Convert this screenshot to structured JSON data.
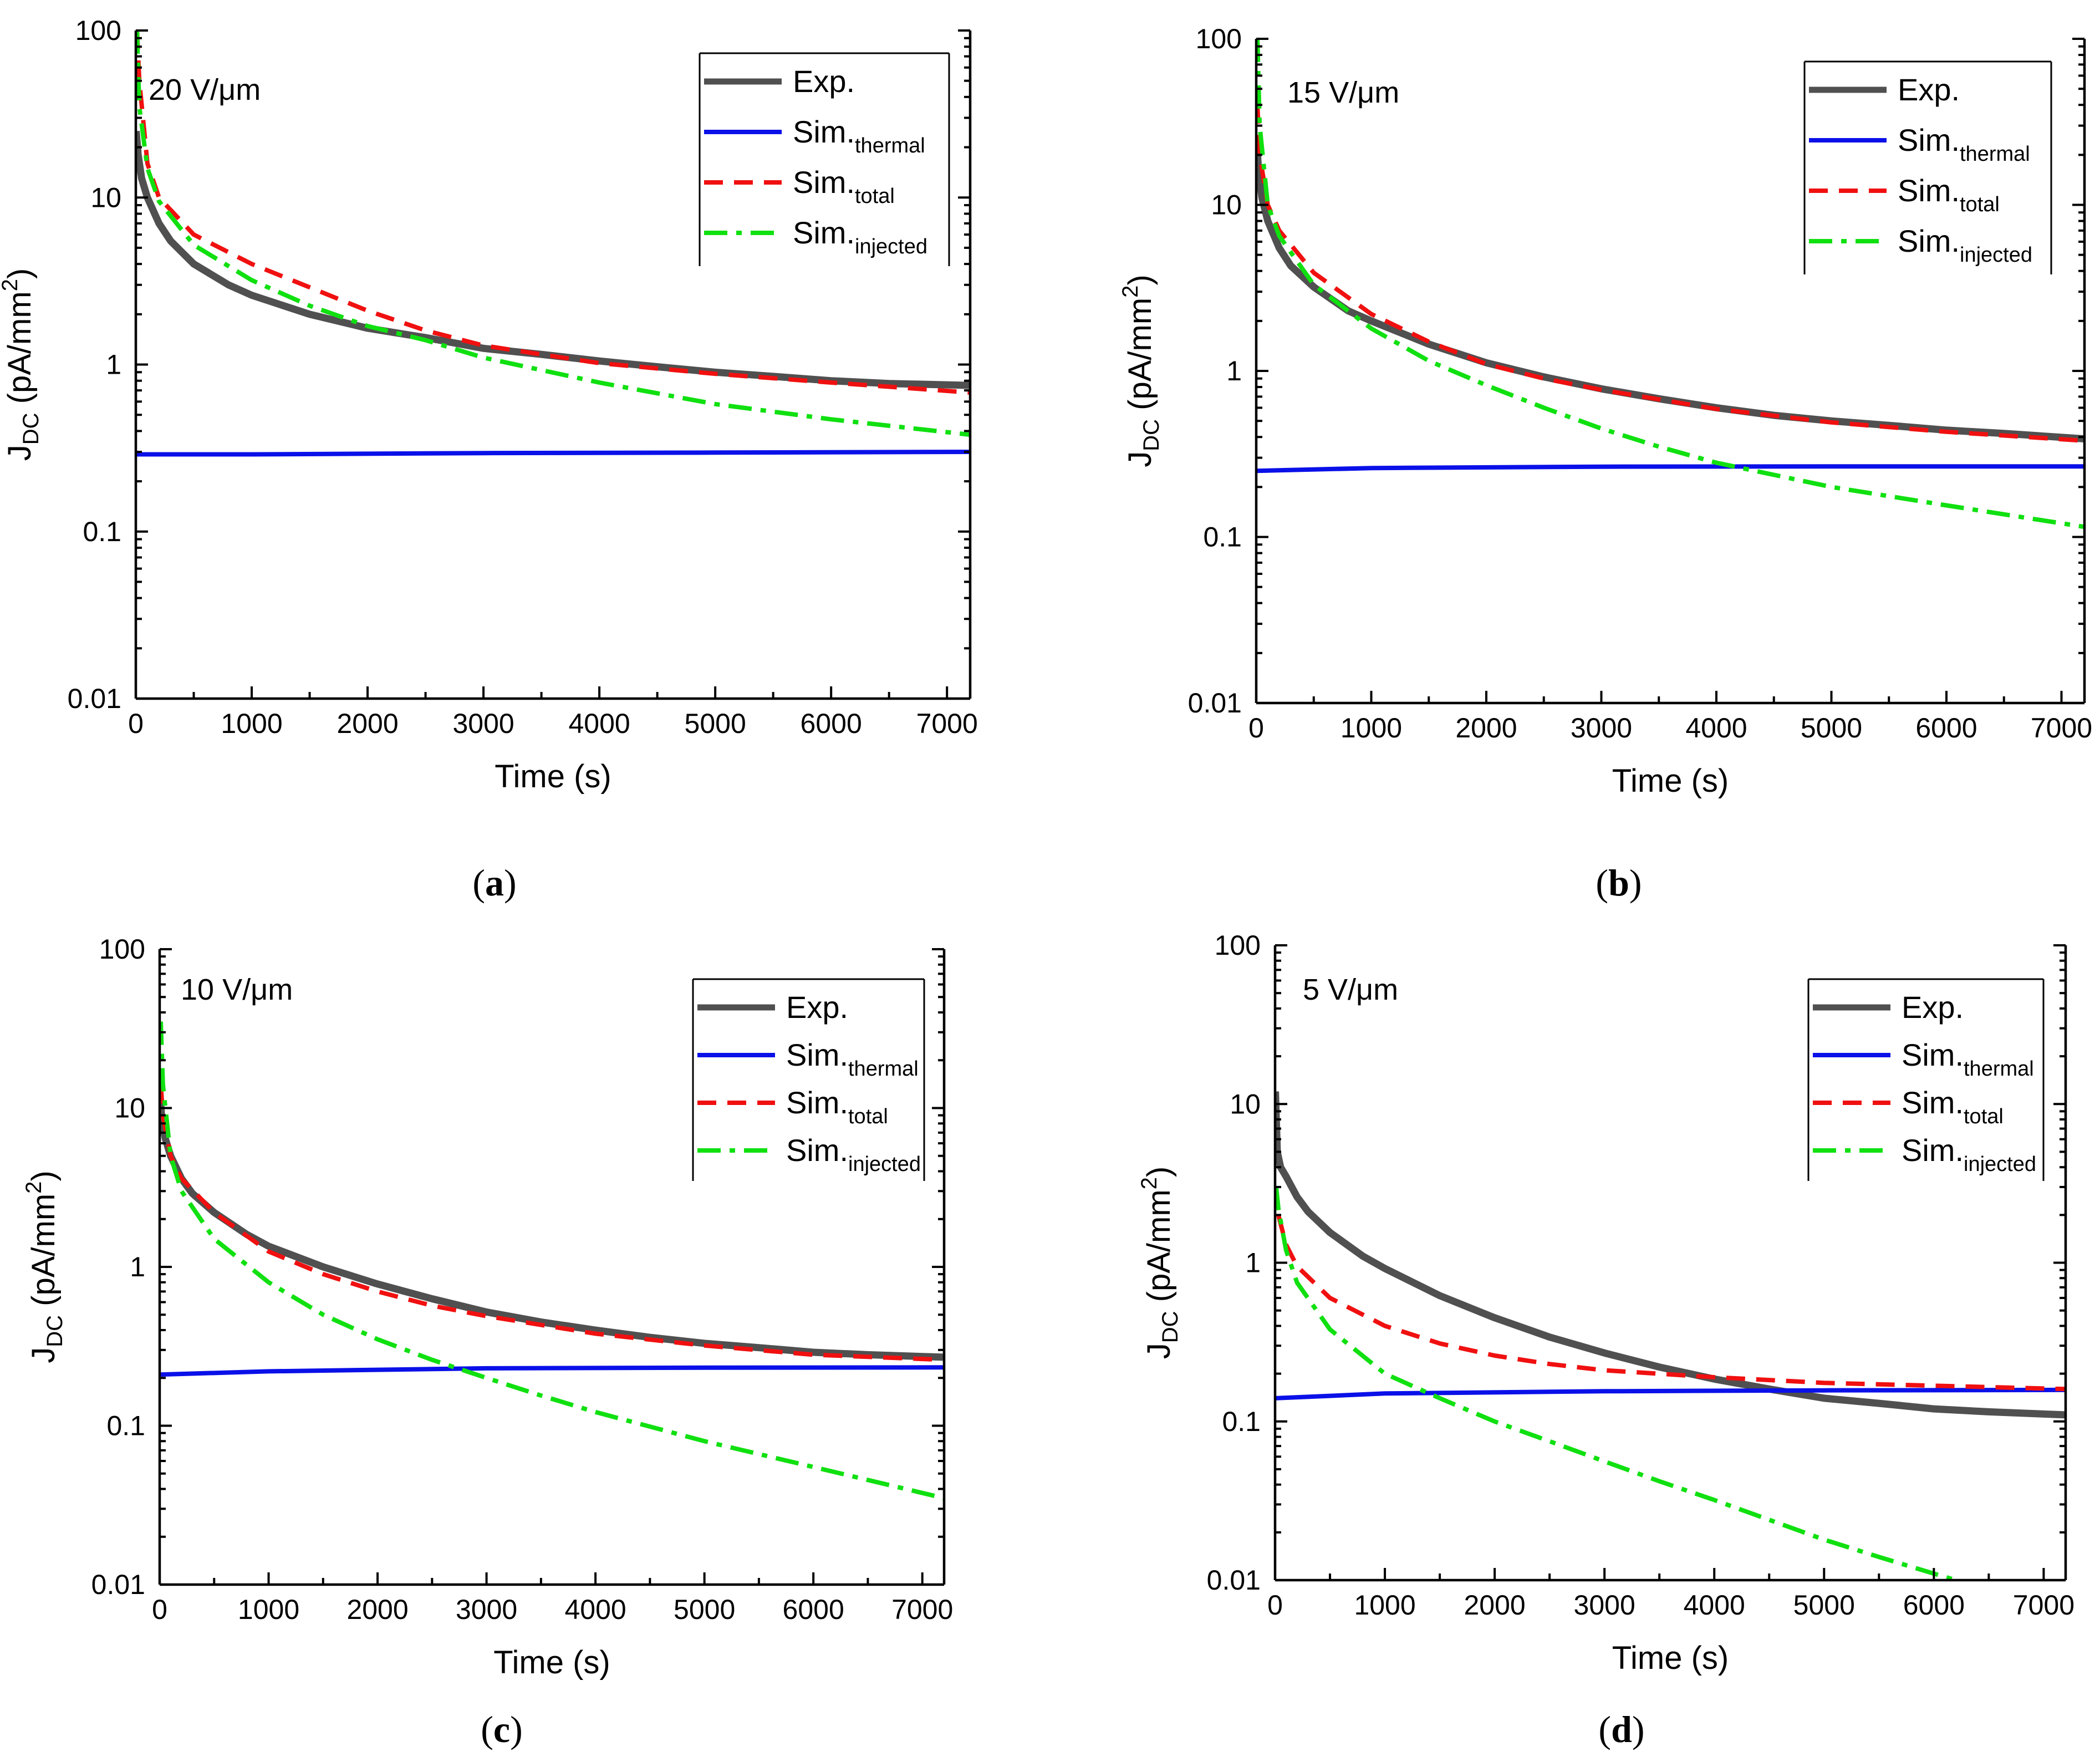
{
  "colors": {
    "exp": "#505050",
    "thermal": "#0a10e8",
    "total": "#f01010",
    "injected": "#10e010"
  },
  "chart_data": [
    {
      "panel": "(a)",
      "panel_letter": "a",
      "type": "line",
      "annotation": "20 V/μm",
      "xlabel": "Time (s)",
      "ylabel": "JDC (pA/mm2)",
      "ylabel_main": "J",
      "ylabel_sub": "DC",
      "ylabel_rest": " (pA/mm",
      "ylabel_sup": "2",
      "ylabel_end": ")",
      "xscale": "linear",
      "yscale": "log",
      "xlim": [
        0,
        7200
      ],
      "ylim": [
        0.01,
        100
      ],
      "xticks": [
        "0",
        "1000",
        "2000",
        "3000",
        "4000",
        "5000",
        "6000",
        "7000"
      ],
      "yticks": [
        "0.01",
        "0.1",
        "1",
        "10",
        "100"
      ],
      "legend": [
        {
          "key": "exp",
          "label": "Exp.",
          "sub": ""
        },
        {
          "key": "thermal",
          "label": "Sim.",
          "sub": "thermal"
        },
        {
          "key": "total",
          "label": "Sim.",
          "sub": "total"
        },
        {
          "key": "injected",
          "label": "Sim.",
          "sub": "injected"
        }
      ],
      "series": [
        {
          "key": "exp",
          "name": "Exp.",
          "x": [
            3,
            20,
            50,
            100,
            200,
            300,
            500,
            800,
            1000,
            1500,
            2000,
            2500,
            3000,
            3500,
            4000,
            4500,
            5000,
            5500,
            6000,
            6500,
            7200
          ],
          "y": [
            25,
            18,
            13,
            10,
            7,
            5.5,
            4,
            3,
            2.6,
            2,
            1.65,
            1.45,
            1.25,
            1.15,
            1.05,
            0.97,
            0.9,
            0.85,
            0.8,
            0.77,
            0.75
          ]
        },
        {
          "key": "thermal",
          "name": "Sim.thermal",
          "x": [
            0,
            1000,
            3000,
            5000,
            7200
          ],
          "y": [
            0.29,
            0.29,
            0.295,
            0.297,
            0.3
          ]
        },
        {
          "key": "total",
          "name": "Sim.total",
          "x": [
            10,
            30,
            100,
            200,
            500,
            1000,
            1500,
            2000,
            2500,
            3000,
            3500,
            4000,
            5000,
            6000,
            7200
          ],
          "y": [
            100,
            50,
            16,
            10,
            6,
            4,
            2.9,
            2.1,
            1.6,
            1.3,
            1.15,
            1.02,
            0.88,
            0.78,
            0.68
          ]
        },
        {
          "key": "injected",
          "name": "Sim.injected",
          "x": [
            10,
            30,
            100,
            200,
            500,
            1000,
            1500,
            2000,
            2500,
            3000,
            4000,
            5000,
            6000,
            7200
          ],
          "y": [
            100,
            35,
            15,
            9.5,
            5.2,
            3.2,
            2.25,
            1.7,
            1.4,
            1.1,
            0.78,
            0.58,
            0.47,
            0.38
          ]
        }
      ]
    },
    {
      "panel": "(b)",
      "panel_letter": "b",
      "type": "line",
      "annotation": "15 V/μm",
      "xlabel": "Time (s)",
      "ylabel": "JDC (pA/mm2)",
      "ylabel_main": "J",
      "ylabel_sub": "DC",
      "ylabel_rest": " (pA/mm",
      "ylabel_sup": "2",
      "ylabel_end": ")",
      "xscale": "linear",
      "yscale": "log",
      "xlim": [
        0,
        7200
      ],
      "ylim": [
        0.01,
        100
      ],
      "xticks": [
        "0",
        "1000",
        "2000",
        "3000",
        "4000",
        "5000",
        "6000",
        "7000"
      ],
      "yticks": [
        "0.01",
        "0.1",
        "1",
        "10",
        "100"
      ],
      "legend": [
        {
          "key": "exp",
          "label": "Exp.",
          "sub": ""
        },
        {
          "key": "thermal",
          "label": "Sim.",
          "sub": "thermal"
        },
        {
          "key": "total",
          "label": "Sim.",
          "sub": "total"
        },
        {
          "key": "injected",
          "label": "Sim.",
          "sub": "injected"
        }
      ],
      "series": [
        {
          "key": "exp",
          "name": "Exp.",
          "x": [
            3,
            20,
            50,
            100,
            200,
            300,
            500,
            800,
            1000,
            1500,
            2000,
            2500,
            3000,
            3500,
            4000,
            4500,
            5000,
            5500,
            6000,
            6500,
            7200
          ],
          "y": [
            25,
            16,
            11,
            8,
            5.5,
            4.3,
            3.2,
            2.3,
            2,
            1.45,
            1.12,
            0.92,
            0.78,
            0.68,
            0.6,
            0.54,
            0.5,
            0.47,
            0.44,
            0.42,
            0.39
          ]
        },
        {
          "key": "thermal",
          "name": "Sim.thermal",
          "x": [
            0,
            1000,
            3000,
            5000,
            7200
          ],
          "y": [
            0.25,
            0.26,
            0.265,
            0.266,
            0.266
          ]
        },
        {
          "key": "total",
          "name": "Sim.total",
          "x": [
            10,
            30,
            100,
            200,
            500,
            1000,
            1500,
            2000,
            2500,
            3000,
            4000,
            5000,
            6000,
            7200
          ],
          "y": [
            40,
            20,
            10,
            7,
            3.9,
            2.2,
            1.5,
            1.1,
            0.9,
            0.77,
            0.59,
            0.49,
            0.43,
            0.38
          ]
        },
        {
          "key": "injected",
          "name": "Sim.injected",
          "x": [
            10,
            30,
            100,
            200,
            500,
            1000,
            1500,
            2000,
            2500,
            3000,
            3500,
            4000,
            5000,
            6000,
            7200
          ],
          "y": [
            100,
            30,
            10,
            6.5,
            3.3,
            1.8,
            1.15,
            0.82,
            0.6,
            0.45,
            0.35,
            0.28,
            0.2,
            0.155,
            0.115
          ]
        }
      ]
    },
    {
      "panel": "(c)",
      "panel_letter": "c",
      "type": "line",
      "annotation": "10 V/μm",
      "xlabel": "Time (s)",
      "ylabel": "JDC (pA/mm2)",
      "ylabel_main": "J",
      "ylabel_sub": "DC",
      "ylabel_rest": " (pA/mm",
      "ylabel_sup": "2",
      "ylabel_end": ")",
      "xscale": "linear",
      "yscale": "log",
      "xlim": [
        0,
        7200
      ],
      "ylim": [
        0.01,
        100
      ],
      "xticks": [
        "0",
        "1000",
        "2000",
        "3000",
        "4000",
        "5000",
        "6000",
        "7000"
      ],
      "yticks": [
        "0.01",
        "0.1",
        "1",
        "10",
        "100"
      ],
      "legend": [
        {
          "key": "exp",
          "label": "Exp.",
          "sub": ""
        },
        {
          "key": "thermal",
          "label": "Sim.",
          "sub": "thermal"
        },
        {
          "key": "total",
          "label": "Sim.",
          "sub": "total"
        },
        {
          "key": "injected",
          "label": "Sim.",
          "sub": "injected"
        }
      ],
      "series": [
        {
          "key": "exp",
          "name": "Exp.",
          "x": [
            3,
            20,
            50,
            100,
            200,
            300,
            500,
            800,
            1000,
            1500,
            2000,
            2500,
            3000,
            3500,
            4000,
            4500,
            5000,
            5500,
            6000,
            6500,
            7200
          ],
          "y": [
            12,
            8.5,
            6.5,
            5,
            3.6,
            2.9,
            2.2,
            1.6,
            1.35,
            1,
            0.78,
            0.63,
            0.52,
            0.45,
            0.4,
            0.36,
            0.33,
            0.31,
            0.29,
            0.28,
            0.27
          ]
        },
        {
          "key": "thermal",
          "name": "Sim.thermal",
          "x": [
            0,
            1000,
            3000,
            5000,
            7200
          ],
          "y": [
            0.21,
            0.22,
            0.23,
            0.232,
            0.233
          ]
        },
        {
          "key": "total",
          "name": "Sim.total",
          "x": [
            10,
            30,
            100,
            200,
            500,
            1000,
            1500,
            2000,
            2500,
            3000,
            4000,
            5000,
            6000,
            7200
          ],
          "y": [
            14,
            9,
            5,
            3.6,
            2.2,
            1.25,
            0.9,
            0.7,
            0.57,
            0.49,
            0.38,
            0.32,
            0.28,
            0.26
          ]
        },
        {
          "key": "injected",
          "name": "Sim.injected",
          "x": [
            10,
            30,
            100,
            200,
            500,
            1000,
            1500,
            2000,
            2500,
            3000,
            3500,
            4000,
            5000,
            6000,
            7200
          ],
          "y": [
            35,
            14,
            5,
            3,
            1.5,
            0.8,
            0.5,
            0.35,
            0.26,
            0.2,
            0.155,
            0.122,
            0.08,
            0.055,
            0.035
          ]
        }
      ]
    },
    {
      "panel": "(d)",
      "panel_letter": "d",
      "type": "line",
      "annotation": "5 V/μm",
      "xlabel": "Time (s)",
      "ylabel": "JDC (pA/mm2)",
      "ylabel_main": "J",
      "ylabel_sub": "DC",
      "ylabel_rest": " (pA/mm",
      "ylabel_sup": "2",
      "ylabel_end": ")",
      "xscale": "linear",
      "yscale": "log",
      "xlim": [
        0,
        7200
      ],
      "ylim": [
        0.01,
        100
      ],
      "xticks": [
        "0",
        "1000",
        "2000",
        "3000",
        "4000",
        "5000",
        "6000",
        "7000"
      ],
      "yticks": [
        "0.01",
        "0.1",
        "1",
        "10",
        "100"
      ],
      "legend": [
        {
          "key": "exp",
          "label": "Exp.",
          "sub": ""
        },
        {
          "key": "thermal",
          "label": "Sim.",
          "sub": "thermal"
        },
        {
          "key": "total",
          "label": "Sim.",
          "sub": "total"
        },
        {
          "key": "injected",
          "label": "Sim.",
          "sub": "injected"
        }
      ],
      "series": [
        {
          "key": "exp",
          "name": "Exp.",
          "x": [
            3,
            20,
            50,
            100,
            200,
            300,
            500,
            800,
            1000,
            1500,
            2000,
            2500,
            3000,
            3500,
            4000,
            4500,
            5000,
            5500,
            6000,
            6500,
            7200
          ],
          "y": [
            12,
            5,
            4,
            3.5,
            2.6,
            2.1,
            1.55,
            1.1,
            0.92,
            0.62,
            0.45,
            0.34,
            0.27,
            0.22,
            0.185,
            0.16,
            0.14,
            0.13,
            0.12,
            0.115,
            0.11
          ]
        },
        {
          "key": "thermal",
          "name": "Sim.thermal",
          "x": [
            0,
            1000,
            3000,
            5000,
            7200
          ],
          "y": [
            0.14,
            0.15,
            0.155,
            0.157,
            0.158
          ]
        },
        {
          "key": "total",
          "name": "Sim.total",
          "x": [
            30,
            100,
            200,
            500,
            1000,
            1500,
            2000,
            2500,
            3000,
            4000,
            5000,
            6000,
            7200
          ],
          "y": [
            2,
            1.3,
            0.95,
            0.6,
            0.4,
            0.31,
            0.26,
            0.23,
            0.21,
            0.19,
            0.175,
            0.168,
            0.16
          ]
        },
        {
          "key": "injected",
          "name": "Sim.injected",
          "x": [
            10,
            30,
            100,
            200,
            500,
            1000,
            1500,
            2000,
            2500,
            3000,
            3500,
            4000,
            4500,
            5000,
            5500,
            6000,
            6200
          ],
          "y": [
            3,
            2.2,
            1.2,
            0.75,
            0.38,
            0.2,
            0.14,
            0.1,
            0.075,
            0.056,
            0.042,
            0.032,
            0.024,
            0.018,
            0.014,
            0.011,
            0.01
          ]
        }
      ]
    }
  ]
}
